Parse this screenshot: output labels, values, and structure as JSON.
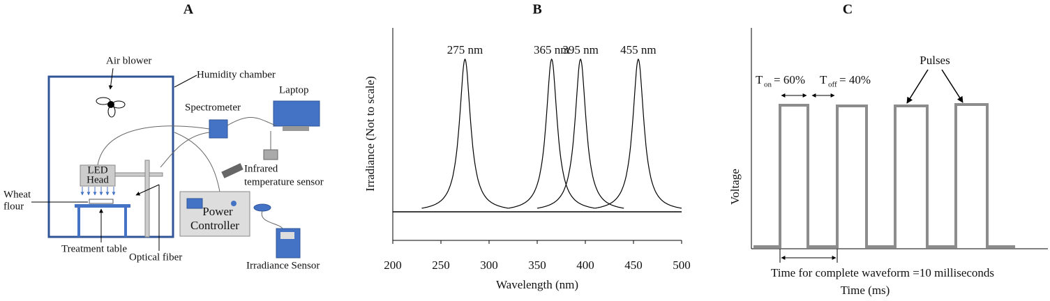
{
  "panel_a": {
    "letter": "A",
    "air_blower": "Air blower",
    "humidity_chamber": "Humidity chamber",
    "spectrometer": "Spectrometer",
    "laptop": "Laptop",
    "led_head": [
      "LED",
      "Head"
    ],
    "wheat_flour": [
      "Wheat",
      "flour"
    ],
    "infrared_sensor": [
      "Infrared",
      "temperature sensor"
    ],
    "power_controller": [
      "Power",
      "Controller"
    ],
    "treatment_table": "Treatment table",
    "optical_fiber": "Optical fiber",
    "irradiance_sensor": "Irradiance Sensor"
  },
  "chart_data": {
    "type": "spectrum",
    "letter": "B",
    "x_label": "Wavelength (nm)",
    "y_label": "Irradiance (Not to scale)",
    "xlim": [
      200,
      500
    ],
    "xticks": [
      200,
      250,
      300,
      350,
      400,
      450,
      500
    ],
    "peaks": [
      275,
      365,
      395,
      455
    ],
    "peak_labels": [
      "275 nm",
      "365 nm",
      "395 nm",
      "455 nm"
    ],
    "color": "#000000"
  },
  "panel_c": {
    "letter": "C",
    "pulses": "Pulses",
    "t_on": {
      "symbol": "T",
      "subscript": "on",
      "text": "= 60%"
    },
    "t_off": {
      "symbol": "T",
      "subscript": "off",
      "text": "= 40%"
    },
    "y_label": "Voltage",
    "waveform_note": "Time for complete waveform =10 milliseconds",
    "x_label": "Time (ms)"
  }
}
